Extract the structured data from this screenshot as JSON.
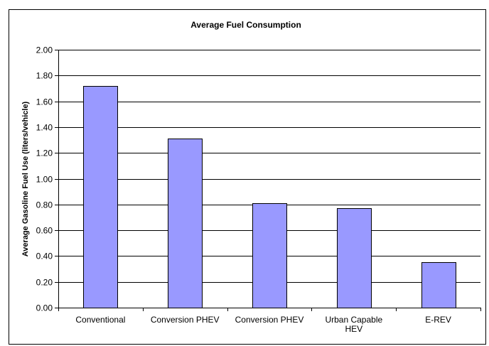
{
  "chart_data": {
    "type": "bar",
    "title": "Average Fuel Consumption",
    "xlabel": "",
    "ylabel": "Average Gasoline Fuel Use (liters/vehicle)",
    "categories": [
      [
        "Conventional"
      ],
      [
        "Conversion PHEV"
      ],
      [
        "Conversion PHEV"
      ],
      [
        "Urban Capable",
        "HEV"
      ],
      [
        "E-REV"
      ]
    ],
    "values": [
      1.72,
      1.31,
      0.81,
      0.77,
      0.35
    ],
    "ylim": [
      0,
      2.0
    ],
    "yticks": [
      "0.00",
      "0.20",
      "0.40",
      "0.60",
      "0.80",
      "1.00",
      "1.20",
      "1.40",
      "1.60",
      "1.80",
      "2.00"
    ],
    "grid": true,
    "legend": "none",
    "bar_color": "#9999ff",
    "bar_stroke": "#000000"
  }
}
